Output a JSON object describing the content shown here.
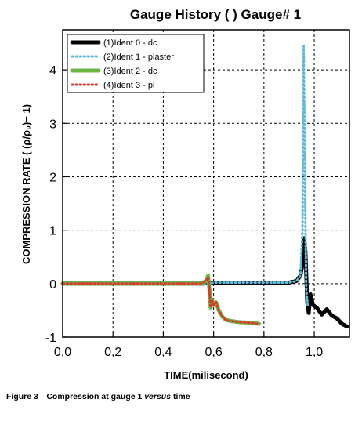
{
  "chart_data": {
    "type": "line",
    "title": "Gauge History ( ) Gauge#  1",
    "xlabel": "TIME(milisecond)",
    "ylabel": "COMPRESSION RATE ( (ρ/ρ₀)− 1)",
    "xlim": [
      0.0,
      1.14
    ],
    "ylim": [
      -1.0,
      4.75
    ],
    "xticks": [
      0.0,
      0.2,
      0.4,
      0.6,
      0.8,
      1.0
    ],
    "xtick_labels": [
      "0,0",
      "0,2",
      "0,4",
      "0,6",
      "0,8",
      "1,0"
    ],
    "yticks": [
      -1,
      0,
      1,
      2,
      3,
      4
    ],
    "ytick_labels": [
      "-1",
      "0",
      "1",
      "2",
      "3",
      "4"
    ],
    "grid": true,
    "legend_position": "top-left",
    "series": [
      {
        "name": "(1)Ident 0 - dc",
        "color": "#000000",
        "style": "solid",
        "x": [
          0.0,
          0.2,
          0.4,
          0.56,
          0.58,
          0.6,
          0.7,
          0.8,
          0.9,
          0.93,
          0.945,
          0.955,
          0.96,
          0.965,
          0.972,
          0.978,
          0.985,
          0.995,
          1.01,
          1.03,
          1.05,
          1.07,
          1.09,
          1.11,
          1.13
        ],
        "y": [
          0.0,
          0.0,
          0.0,
          0.0,
          0.01,
          0.02,
          0.02,
          0.02,
          0.02,
          0.05,
          0.15,
          0.4,
          0.85,
          0.6,
          -0.35,
          -0.55,
          -0.2,
          -0.4,
          -0.45,
          -0.58,
          -0.48,
          -0.6,
          -0.65,
          -0.75,
          -0.8
        ]
      },
      {
        "name": "(2)Ident 1 - plaster",
        "color": "#62b8d6",
        "style": "dotted",
        "x": [
          0.0,
          0.3,
          0.58,
          0.6,
          0.7,
          0.8,
          0.9,
          0.93,
          0.945,
          0.953,
          0.958,
          0.963,
          0.968,
          0.974
        ],
        "y": [
          0.0,
          0.0,
          0.0,
          0.02,
          0.02,
          0.02,
          0.02,
          0.05,
          0.15,
          1.0,
          4.45,
          2.0,
          -0.1,
          -0.4
        ]
      },
      {
        "name": "(3)Ident 2 - dc",
        "color": "#6ab744",
        "style": "solid",
        "x": [
          0.0,
          0.2,
          0.4,
          0.55,
          0.57,
          0.578,
          0.583,
          0.588,
          0.593,
          0.6,
          0.61,
          0.62,
          0.635,
          0.65,
          0.67,
          0.7,
          0.74,
          0.78
        ],
        "y": [
          0.0,
          0.0,
          0.0,
          0.0,
          0.05,
          0.15,
          -0.1,
          -0.45,
          -0.3,
          -0.4,
          -0.35,
          -0.5,
          -0.62,
          -0.68,
          -0.7,
          -0.72,
          -0.73,
          -0.75
        ]
      },
      {
        "name": "(4)Ident 3 - pl",
        "color": "#d83a2e",
        "style": "dotted",
        "x": [
          0.0,
          0.2,
          0.4,
          0.55,
          0.57,
          0.578,
          0.583,
          0.588,
          0.593,
          0.6,
          0.61,
          0.62,
          0.635,
          0.65,
          0.67,
          0.7,
          0.74,
          0.78
        ],
        "y": [
          0.0,
          0.0,
          0.0,
          0.0,
          0.05,
          0.12,
          -0.1,
          -0.45,
          -0.3,
          -0.4,
          -0.35,
          -0.5,
          -0.62,
          -0.68,
          -0.7,
          -0.72,
          -0.73,
          -0.75
        ]
      }
    ]
  },
  "caption": {
    "prefix": "Figure 3—Compression at gauge 1 ",
    "italic": "versus",
    "suffix": " time"
  }
}
